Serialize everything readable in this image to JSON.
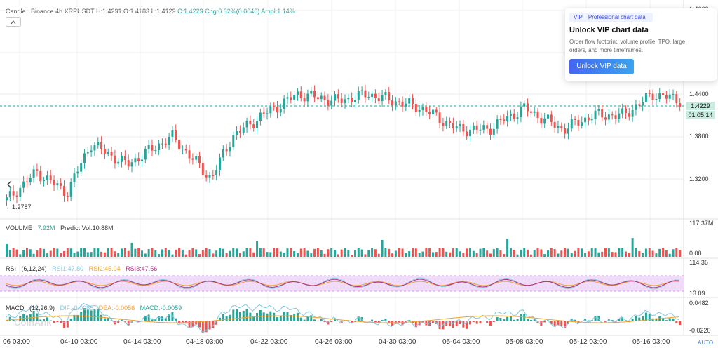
{
  "header": {
    "chart_type": "Candle",
    "exchange": "Binance",
    "interval": "4h",
    "symbol": "XRPUSDT",
    "high": "H:1.4291",
    "open": "O:1.4183",
    "low": "L:1.4129",
    "close": "C:1.4229",
    "change": "Chg:0.32%(0.0046)",
    "amplitude": "Ampl:1.14%"
  },
  "price_axis": {
    "labels": [
      "1.4600",
      "1.4400",
      "1.3800",
      "1.3200"
    ],
    "current_price": "1.4229",
    "countdown": "01:05:14",
    "min_marker": "1.2787",
    "min_arrow": "←"
  },
  "volume": {
    "label": "VOLUME",
    "value": "7.92M",
    "predict": "Predict Vol:10.88M",
    "axis_top": "117.37M",
    "axis_bottom": "0.00"
  },
  "rsi": {
    "label": "RSI",
    "params": "(6,12,24)",
    "rsi1": "RSI1:47.80",
    "rsi2": "RSI2:45.04",
    "rsi3": "RSI3:47.56",
    "axis_top": "114.36",
    "axis_bottom": "13.09"
  },
  "macd": {
    "label": "MACD",
    "params": "(12,26,9)",
    "dif": "DIF:-0.0085",
    "dea": "DEA:-0.0056",
    "macd": "MACD:-0.0059",
    "axis_top": "0.0482",
    "axis_bottom": "-0.0220"
  },
  "watermark": "CoinAnk",
  "x_axis": {
    "dates": [
      "06 03:00",
      "04-10 03:00",
      "04-14 03:00",
      "04-18 03:00",
      "04-22 03:00",
      "04-26 03:00",
      "04-30 03:00",
      "05-04 03:00",
      "05-08 03:00",
      "05-12 03:00",
      "05-16 03:00"
    ],
    "auto": "AUTO"
  },
  "vip_popup": {
    "badge": "VIP",
    "badge_text": "Professional chart data",
    "title": "Unlock VIP chart data",
    "description": "Order flow footprint, volume profile, TPO, large orders, and more timeframes.",
    "button": "Unlock VIP data"
  },
  "colors": {
    "up": "#26a69a",
    "down": "#ef5350",
    "rsi1": "#7ec8e3",
    "rsi2": "#f0a030",
    "rsi3": "#b03080",
    "dif": "#7ec8e3",
    "dea": "#f0a030",
    "rsi_band": "#f0dcf8"
  },
  "icons": {
    "collapse": "back-chevron-icon",
    "left_nav": "chevron-left-icon"
  }
}
